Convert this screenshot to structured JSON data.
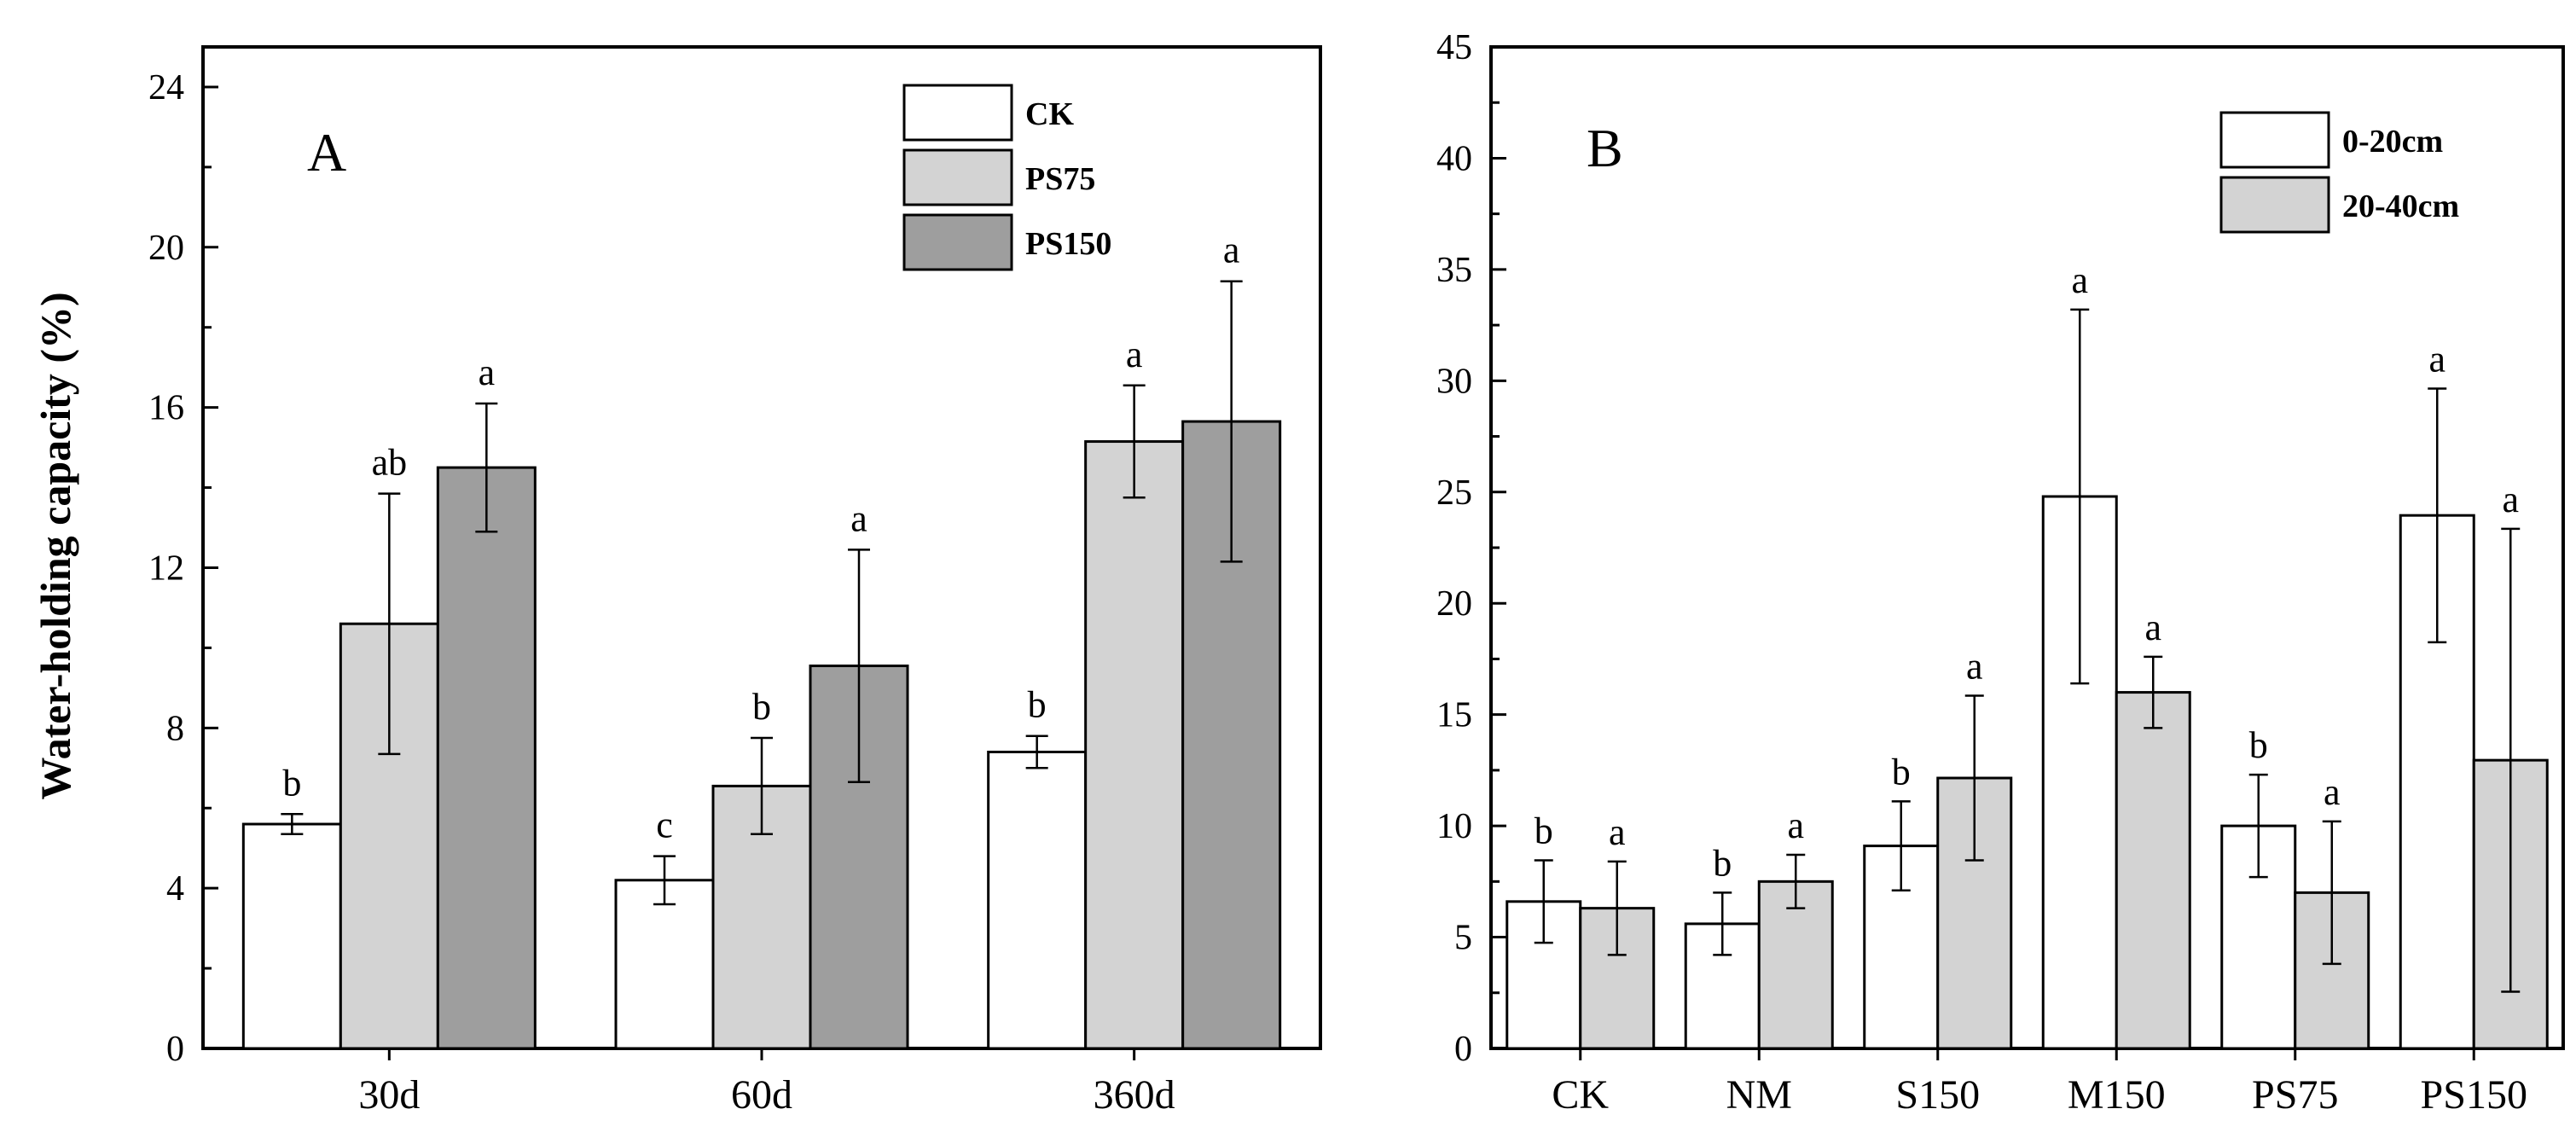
{
  "chart_data": [
    {
      "type": "bar",
      "panel": "A",
      "title": "",
      "xlabel": "",
      "ylabel": "Water-holding capacity (%)",
      "ylim": [
        0,
        25
      ],
      "yticks": [
        0,
        4,
        8,
        12,
        16,
        20,
        24
      ],
      "categories": [
        "30d",
        "60d",
        "360d"
      ],
      "legend_position": "top-right",
      "series": [
        {
          "name": "CK",
          "color": "#ffffff",
          "values": [
            5.6,
            4.2,
            7.4
          ],
          "errors": [
            0.25,
            0.6,
            0.4
          ],
          "letters": [
            "b",
            "c",
            "b"
          ]
        },
        {
          "name": "PS75",
          "color": "#d3d3d3",
          "values": [
            10.6,
            6.55,
            15.15
          ],
          "errors": [
            3.25,
            1.2,
            1.4
          ],
          "letters": [
            "ab",
            "b",
            "a"
          ]
        },
        {
          "name": "PS150",
          "color": "#9e9e9e",
          "values": [
            14.5,
            9.55,
            15.65
          ],
          "errors": [
            1.6,
            2.9,
            3.5
          ],
          "letters": [
            "a",
            "a",
            "a"
          ]
        }
      ]
    },
    {
      "type": "bar",
      "panel": "B",
      "title": "",
      "xlabel": "",
      "ylabel": "",
      "ylim": [
        0,
        45
      ],
      "yticks": [
        0,
        5,
        10,
        15,
        20,
        25,
        30,
        35,
        40,
        45
      ],
      "categories": [
        "CK",
        "NM",
        "S150",
        "M150",
        "PS75",
        "PS150"
      ],
      "legend_position": "top-right",
      "series": [
        {
          "name": "0-20cm",
          "color": "#ffffff",
          "values": [
            6.6,
            5.6,
            9.1,
            24.8,
            10.0,
            23.95
          ],
          "errors": [
            1.85,
            1.4,
            2.0,
            8.4,
            2.3,
            5.7
          ],
          "letters": [
            "b",
            "b",
            "b",
            "a",
            "b",
            "a"
          ]
        },
        {
          "name": "20-40cm",
          "color": "#d3d3d3",
          "values": [
            6.3,
            7.5,
            12.15,
            16.0,
            7.0,
            12.95
          ],
          "errors": [
            2.1,
            1.2,
            3.7,
            1.6,
            3.2,
            10.4
          ],
          "letters": [
            "a",
            "a",
            "a",
            "a",
            "a",
            "a"
          ]
        }
      ]
    }
  ]
}
